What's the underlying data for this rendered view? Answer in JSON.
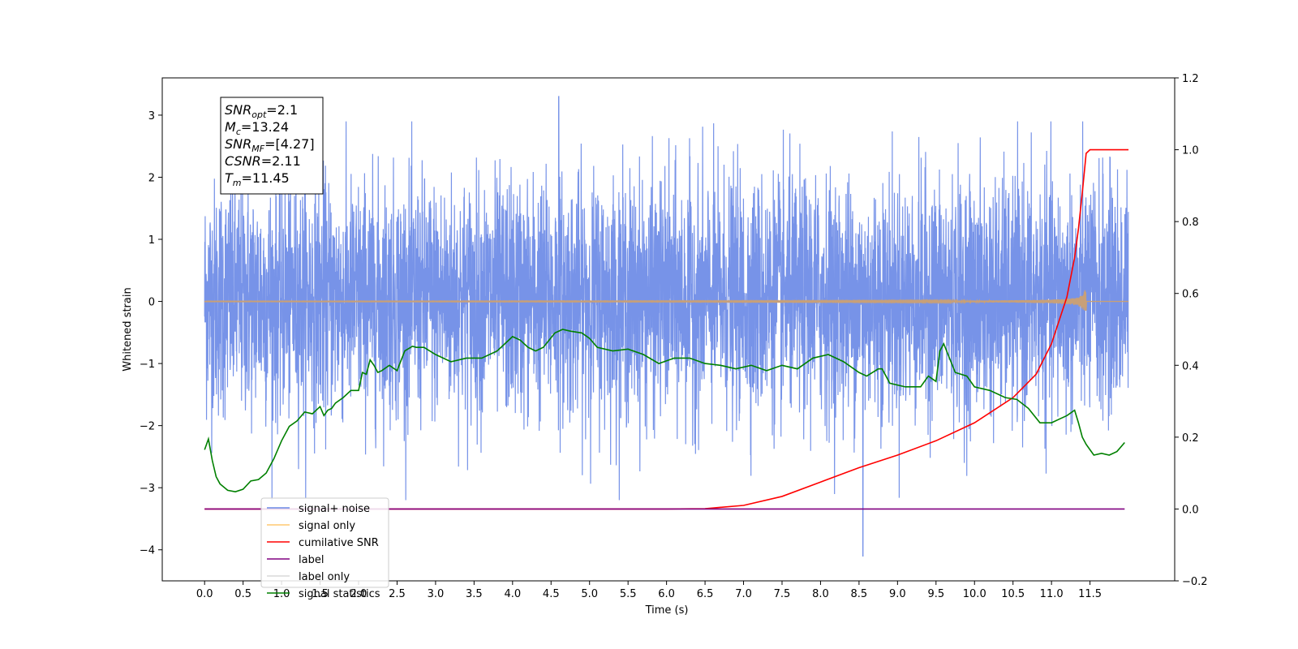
{
  "chart_data": {
    "type": "line",
    "title": "",
    "xlabel": "Time (s)",
    "ylabel": "Whitened strain",
    "ylabel_right": "",
    "xlim": [
      -0.55,
      12.6
    ],
    "ylim_left": [
      -4.5,
      3.6
    ],
    "ylim_right": [
      -0.2,
      1.2
    ],
    "x_ticks": [
      0.0,
      0.5,
      1.0,
      1.5,
      2.0,
      2.5,
      3.0,
      3.5,
      4.0,
      4.5,
      5.0,
      5.5,
      6.0,
      6.5,
      7.0,
      7.5,
      8.0,
      8.5,
      9.0,
      9.5,
      10.0,
      10.5,
      11.0,
      11.5
    ],
    "x_tick_labels": [
      "0.0",
      "0.5",
      "1.0",
      "1.5",
      "2.0",
      "2.5",
      "3.0",
      "3.5",
      "4.0",
      "4.5",
      "5.0",
      "5.5",
      "6.0",
      "6.5",
      "7.0",
      "7.5",
      "8.0",
      "8.5",
      "9.0",
      "9.5",
      "10.0",
      "10.5",
      "11.0",
      "11.5"
    ],
    "y_left_ticks": [
      -4,
      -3,
      -2,
      -1,
      0,
      1,
      2,
      3
    ],
    "y_left_tick_labels": [
      "−4",
      "−3",
      "−2",
      "−1",
      "0",
      "1",
      "2",
      "3"
    ],
    "y_right_ticks": [
      -0.2,
      0.0,
      0.2,
      0.4,
      0.6,
      0.8,
      1.0,
      1.2
    ],
    "y_right_tick_labels": [
      "−0.2",
      "0.0",
      "0.2",
      "0.4",
      "0.6",
      "0.8",
      "1.0",
      "1.2"
    ],
    "grid": false,
    "legend_placement": "lower-left",
    "series": [
      {
        "name": "signal+ noise",
        "axis": "left",
        "color": "#6b8ae6",
        "description_values": {
          "x_range": [
            0.0,
            12.0
          ],
          "typical_band": [
            -1.3,
            1.4
          ],
          "max": 3.3,
          "max_x": 4.6,
          "min": -4.1,
          "min_x": 8.55
        }
      },
      {
        "name": "signal only",
        "axis": "left",
        "color": "#ffb347",
        "description_values": {
          "chirp_end": 11.45,
          "peak_amplitude": 0.4
        }
      },
      {
        "name": "cumilative SNR",
        "axis": "right",
        "color": "#ff0000",
        "x": [
          0.0,
          6.0,
          6.5,
          7.0,
          7.5,
          8.0,
          8.5,
          9.0,
          9.5,
          10.0,
          10.5,
          10.8,
          11.0,
          11.2,
          11.3,
          11.35,
          11.4,
          11.45,
          11.5,
          11.6,
          11.8,
          12.0
        ],
        "values": [
          0.0,
          0.0,
          0.001,
          0.01,
          0.035,
          0.075,
          0.115,
          0.15,
          0.19,
          0.24,
          0.31,
          0.375,
          0.46,
          0.59,
          0.7,
          0.78,
          0.88,
          0.99,
          1.0,
          1.0,
          1.0,
          1.0
        ]
      },
      {
        "name": "label",
        "axis": "right",
        "color": "#800080",
        "x": [
          0.0,
          11.95
        ],
        "values": [
          0.0,
          0.0
        ]
      },
      {
        "name": "label only",
        "axis": "right",
        "color": "#cccccc",
        "x": [],
        "values": []
      },
      {
        "name": "signal statistics",
        "axis": "right",
        "color": "#008000",
        "x": [
          0.0,
          0.05,
          0.1,
          0.15,
          0.2,
          0.3,
          0.4,
          0.5,
          0.6,
          0.7,
          0.8,
          0.9,
          1.0,
          1.1,
          1.2,
          1.3,
          1.4,
          1.5,
          1.55,
          1.6,
          1.65,
          1.7,
          1.8,
          1.9,
          2.0,
          2.05,
          2.1,
          2.15,
          2.2,
          2.25,
          2.3,
          2.4,
          2.5,
          2.6,
          2.7,
          2.75,
          2.85,
          3.0,
          3.2,
          3.4,
          3.6,
          3.8,
          4.0,
          4.1,
          4.2,
          4.3,
          4.4,
          4.55,
          4.65,
          4.75,
          4.9,
          5.0,
          5.1,
          5.3,
          5.5,
          5.7,
          5.9,
          6.1,
          6.3,
          6.5,
          6.7,
          6.9,
          7.1,
          7.3,
          7.5,
          7.7,
          7.9,
          8.1,
          8.3,
          8.5,
          8.6,
          8.75,
          8.8,
          8.9,
          9.1,
          9.3,
          9.4,
          9.5,
          9.55,
          9.6,
          9.75,
          9.9,
          10.0,
          10.2,
          10.4,
          10.55,
          10.7,
          10.85,
          11.0,
          11.1,
          11.2,
          11.3,
          11.35,
          11.4,
          11.45,
          11.5,
          11.55,
          11.65,
          11.75,
          11.85,
          11.95
        ],
        "values": [
          0.165,
          0.195,
          0.135,
          0.09,
          0.07,
          0.052,
          0.048,
          0.055,
          0.078,
          0.082,
          0.1,
          0.14,
          0.19,
          0.23,
          0.245,
          0.27,
          0.265,
          0.285,
          0.26,
          0.275,
          0.28,
          0.295,
          0.31,
          0.33,
          0.33,
          0.38,
          0.375,
          0.415,
          0.4,
          0.38,
          0.385,
          0.4,
          0.385,
          0.44,
          0.453,
          0.45,
          0.45,
          0.43,
          0.41,
          0.42,
          0.42,
          0.44,
          0.48,
          0.47,
          0.45,
          0.44,
          0.45,
          0.49,
          0.5,
          0.495,
          0.49,
          0.475,
          0.45,
          0.44,
          0.445,
          0.43,
          0.405,
          0.42,
          0.42,
          0.405,
          0.4,
          0.39,
          0.4,
          0.385,
          0.4,
          0.39,
          0.42,
          0.43,
          0.41,
          0.38,
          0.37,
          0.39,
          0.39,
          0.35,
          0.34,
          0.34,
          0.37,
          0.355,
          0.44,
          0.46,
          0.38,
          0.37,
          0.34,
          0.33,
          0.31,
          0.305,
          0.28,
          0.24,
          0.24,
          0.25,
          0.26,
          0.275,
          0.24,
          0.2,
          0.18,
          0.165,
          0.15,
          0.155,
          0.15,
          0.16,
          0.185
        ]
      }
    ],
    "annotation_box": {
      "lines": [
        {
          "base": "SNR",
          "sub": "opt",
          "rest": "=2.1"
        },
        {
          "base": "M",
          "sub": "c",
          "rest": "=13.24"
        },
        {
          "base": "SNR",
          "sub": "MF",
          "rest": "=[4.27]"
        },
        {
          "base": "CSNR",
          "sub": "",
          "rest": "=2.11"
        },
        {
          "base": "T",
          "sub": "m",
          "rest": "=11.45"
        }
      ]
    }
  }
}
